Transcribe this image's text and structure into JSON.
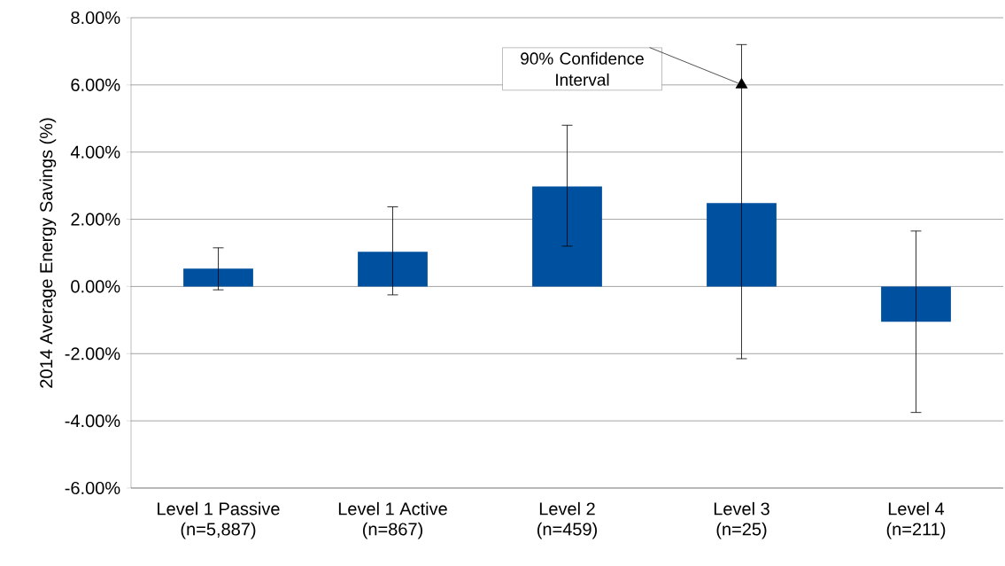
{
  "chart_data": {
    "type": "bar",
    "ylabel": "2014 Average Energy Savings (%)",
    "categories": [
      "Level 1 Passive (n=5,887)",
      "Level 1 Active (n=867)",
      "Level 2 (n=459)",
      "Level 3 (n=25)",
      "Level 4 (n=211)"
    ],
    "values": [
      0.53,
      1.03,
      2.98,
      2.48,
      -1.05
    ],
    "errors": [
      [
        -0.1,
        1.15
      ],
      [
        -0.25,
        2.37
      ],
      [
        1.2,
        4.8
      ],
      [
        -2.15,
        7.2
      ],
      [
        -3.75,
        1.65
      ]
    ],
    "color": "#0050a0",
    "ylim": [
      -6,
      8
    ],
    "yticks": [
      {
        "value": -6,
        "label": "-6.00%"
      },
      {
        "value": -4,
        "label": "-4.00%"
      },
      {
        "value": -2,
        "label": "-2.00%"
      },
      {
        "value": 0,
        "label": "0.00%"
      },
      {
        "value": 2,
        "label": "2.00%"
      },
      {
        "value": 4,
        "label": "4.00%"
      },
      {
        "value": 6,
        "label": "6.00%"
      },
      {
        "value": 8,
        "label": "8.00%"
      }
    ],
    "grid": "y",
    "annotations": [
      {
        "text": "90% Confidence Interval",
        "x": "Level 3 (n=25)",
        "y": 6
      }
    ]
  }
}
